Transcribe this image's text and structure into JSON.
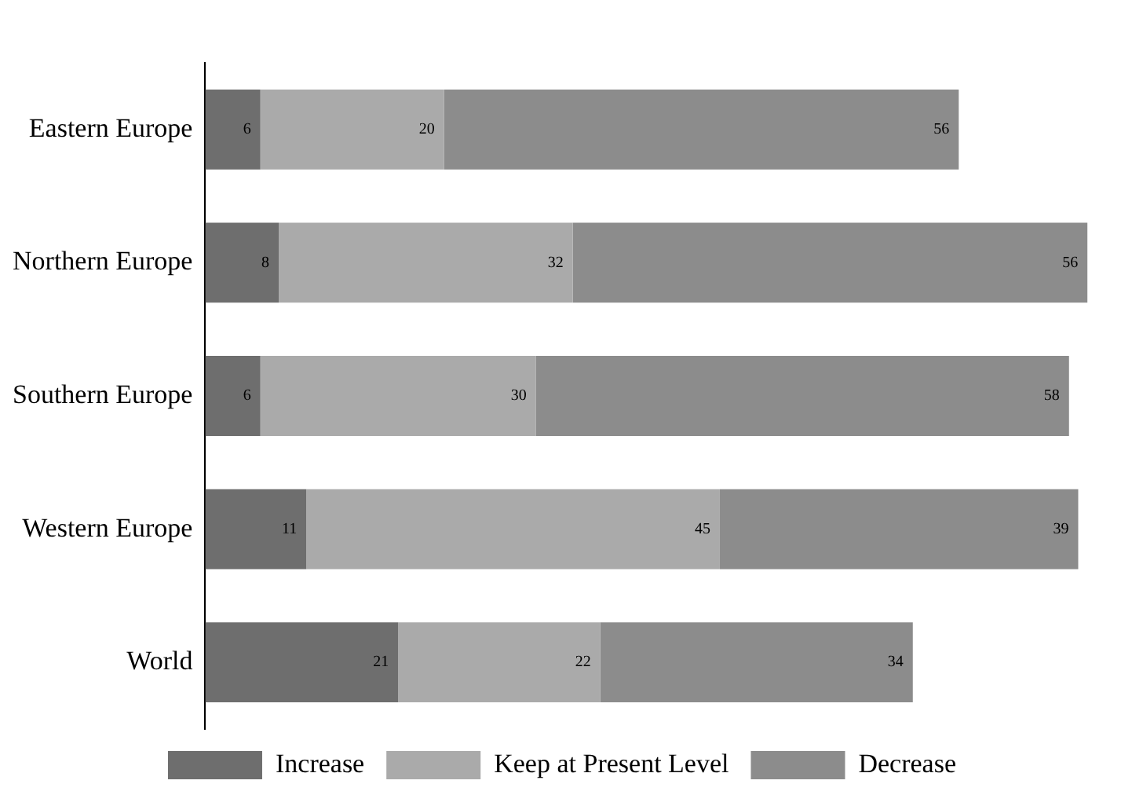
{
  "chart_data": {
    "type": "bar",
    "orientation": "horizontal",
    "stacked": true,
    "categories": [
      "Eastern Europe",
      "Northern Europe",
      "Southern Europe",
      "Western Europe",
      "World"
    ],
    "series": [
      {
        "name": "Increase",
        "color": "#6e6e6e",
        "values": [
          6,
          8,
          6,
          11,
          21
        ]
      },
      {
        "name": "Keep at Present Level",
        "color": "#aaaaaa",
        "values": [
          20,
          32,
          30,
          45,
          22
        ]
      },
      {
        "name": "Decrease",
        "color": "#8c8c8c",
        "values": [
          56,
          56,
          58,
          39,
          34
        ]
      }
    ],
    "tick_labels": "y",
    "grid": false,
    "legend": "bottom",
    "data_labels": true
  }
}
